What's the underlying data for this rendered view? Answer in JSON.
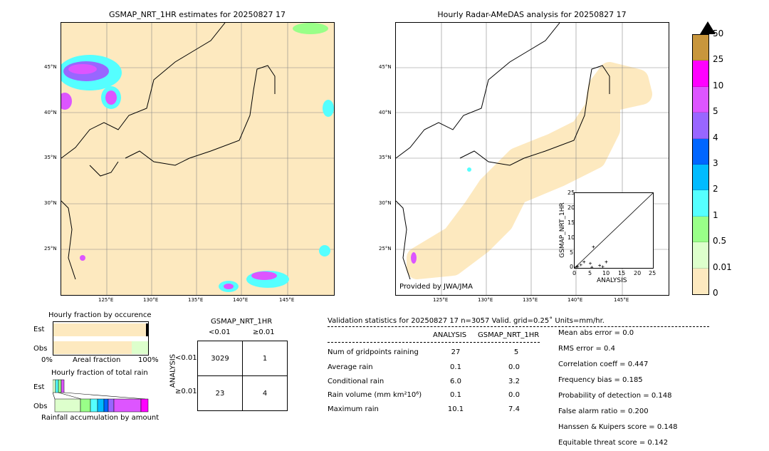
{
  "left_map": {
    "title": "GSMAP_NRT_1HR estimates for 20250827 17",
    "lat_labels": [
      "45°N",
      "40°N",
      "35°N",
      "30°N",
      "25°N"
    ],
    "lon_labels": [
      "125°E",
      "130°E",
      "135°E",
      "140°E",
      "145°E"
    ]
  },
  "right_map": {
    "title": "Hourly Radar-AMeDAS analysis for 20250827 17",
    "lat_labels": [
      "45°N",
      "40°N",
      "35°N",
      "30°N",
      "25°N"
    ],
    "lon_labels": [
      "125°E",
      "130°E",
      "135°E",
      "140°E",
      "145°E"
    ],
    "credit": "Provided by JWA/JMA"
  },
  "colorbar": {
    "labels": [
      "50",
      "25",
      "10",
      "5",
      "4",
      "3",
      "2",
      "1",
      "0.5",
      "0.01",
      "0"
    ],
    "colors": [
      "#c8963c",
      "#ff00ff",
      "#dd55ff",
      "#9966ff",
      "#0066ff",
      "#00bbff",
      "#55ffff",
      "#99ff88",
      "#ddffcc",
      "#fde9bf"
    ]
  },
  "chart_data": {
    "type": "scatter",
    "xlabel": "ANALYSIS",
    "ylabel": "GSMAP_NRT_1HR",
    "xlim": [
      0,
      25
    ],
    "ylim": [
      0,
      25
    ],
    "ticks": [
      "0",
      "5",
      "10",
      "15",
      "20",
      "25"
    ],
    "points": [
      [
        0.5,
        0.3
      ],
      [
        1,
        0.5
      ],
      [
        2,
        1
      ],
      [
        3,
        2
      ],
      [
        5,
        1.5
      ],
      [
        6,
        7
      ],
      [
        8,
        0.8
      ],
      [
        9,
        0.4
      ],
      [
        10.1,
        2
      ],
      [
        5.5,
        0.2
      ]
    ]
  },
  "fraction_occurrence": {
    "title": "Hourly fraction by occurence",
    "est_label": "Est",
    "obs_label": "Obs",
    "axis_left": "0%",
    "axis_mid": "Areal fraction",
    "axis_right": "100%",
    "est_fraction": 0.997,
    "obs_fraction": 0.83
  },
  "fraction_total": {
    "title": "Hourly fraction of total rain",
    "est_label": "Est",
    "obs_label": "Obs",
    "caption": "Rainfall accumulation by amount"
  },
  "contingency": {
    "title": "GSMAP_NRT_1HR",
    "col_lt": "<0.01",
    "col_ge": "≥0.01",
    "row_title": "ANALYSIS",
    "row_lt": "<0.01",
    "row_ge": "≥0.01",
    "a": "3029",
    "b": "1",
    "c": "23",
    "d": "4"
  },
  "validation": {
    "header": "Validation statistics for 20250827 17  n=3057 Valid. grid=0.25˚ Units=mm/hr.",
    "col_analysis": "ANALYSIS",
    "col_gsmap": "GSMAP_NRT_1HR",
    "rows": [
      {
        "label": "Num of gridpoints raining",
        "analysis": "27",
        "gsmap": "5"
      },
      {
        "label": "Average rain",
        "analysis": "0.1",
        "gsmap": "0.0"
      },
      {
        "label": "Conditional rain",
        "analysis": "6.0",
        "gsmap": "3.2"
      },
      {
        "label": "Rain volume (mm km²10⁶)",
        "analysis": "0.1",
        "gsmap": "0.0"
      },
      {
        "label": "Maximum rain",
        "analysis": "10.1",
        "gsmap": "7.4"
      }
    ],
    "scores": [
      "Mean abs error =    0.0",
      "RMS error =    0.4",
      "Correlation coeff =  0.447",
      "Frequency bias =  0.185",
      "Probability of detection =  0.148",
      "False alarm ratio =  0.200",
      "Hanssen & Kuipers score =  0.148",
      "Equitable threat score =  0.142"
    ]
  }
}
